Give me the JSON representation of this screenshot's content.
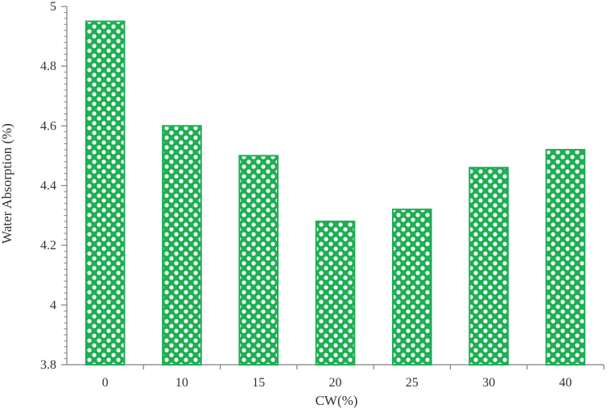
{
  "chart_data": {
    "type": "bar",
    "title": "",
    "xlabel": "CW(%)",
    "ylabel": "Water Absorption (%)",
    "categories": [
      "0",
      "10",
      "15",
      "20",
      "25",
      "30",
      "40"
    ],
    "series": [
      {
        "values": [
          4.95,
          4.6,
          4.5,
          4.28,
          4.32,
          4.46,
          4.52
        ]
      }
    ],
    "ylim": [
      3.8,
      5
    ],
    "yticks": [
      3.8,
      4,
      4.2,
      4.4,
      4.6,
      4.8,
      5
    ],
    "ytick_labels": [
      "3.8",
      "4",
      "4.2",
      "4.4",
      "4.6",
      "4.8",
      "5"
    ],
    "grid": false,
    "legend": "none",
    "colors": {
      "bar": "#1fae54",
      "axis": "#7f7f7f",
      "text": "#333333"
    }
  }
}
